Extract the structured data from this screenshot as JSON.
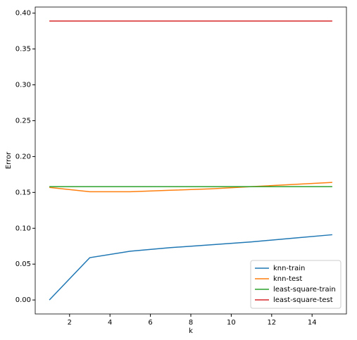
{
  "chart_data": {
    "type": "line",
    "xlabel": "k",
    "ylabel": "Error",
    "x": [
      1,
      3,
      5,
      7,
      9,
      11,
      13,
      15
    ],
    "series": [
      {
        "name": "knn-train",
        "color": "#1f77b4",
        "values": [
          0.0,
          0.059,
          0.068,
          0.073,
          0.077,
          0.081,
          0.086,
          0.091
        ]
      },
      {
        "name": "knn-test",
        "color": "#ff7f0e",
        "values": [
          0.157,
          0.151,
          0.151,
          0.153,
          0.155,
          0.158,
          0.161,
          0.164
        ]
      },
      {
        "name": "least-square-train",
        "color": "#2ca02c",
        "values": [
          0.158,
          0.158,
          0.158,
          0.158,
          0.158,
          0.158,
          0.158,
          0.158
        ]
      },
      {
        "name": "least-square-test",
        "color": "#d62728",
        "values": [
          0.389,
          0.389,
          0.389,
          0.389,
          0.389,
          0.389,
          0.389,
          0.389
        ]
      }
    ],
    "xlim": [
      0.3,
      15.7
    ],
    "xticks": [
      2,
      4,
      6,
      8,
      10,
      12,
      14
    ],
    "ylim": [
      -0.0195,
      0.4085
    ],
    "yticks": [
      {
        "value": 0,
        "label": "0.00"
      },
      {
        "value": 0.05,
        "label": "0.05"
      },
      {
        "value": 0.1,
        "label": "0.10"
      },
      {
        "value": 0.15,
        "label": "0.15"
      },
      {
        "value": 0.2,
        "label": "0.20"
      },
      {
        "value": 0.25,
        "label": "0.25"
      },
      {
        "value": 0.3,
        "label": "0.30"
      },
      {
        "value": 0.35,
        "label": "0.35"
      },
      {
        "value": 0.4,
        "label": "0.40"
      }
    ],
    "legend": "lower right"
  }
}
